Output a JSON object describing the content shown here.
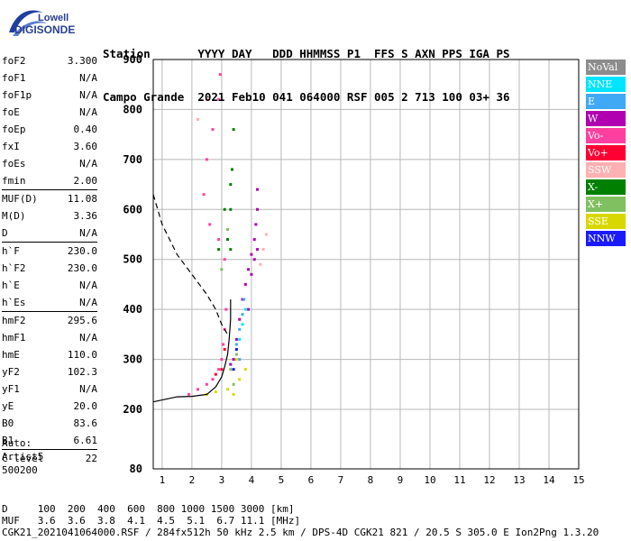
{
  "logo": {
    "line1": "Lowell",
    "line2": "DIGISONDE"
  },
  "header": {
    "row1": "Station       YYYY DAY   DDD HHMMSS P1  FFS S AXN PPS IGA PS",
    "row2": "Campo Grande  2021 Feb10 041 064000 RSF 005 2 713 100 03+ 36"
  },
  "params": [
    {
      "label": "foF2",
      "value": "3.300"
    },
    {
      "label": "foF1",
      "value": "N/A"
    },
    {
      "label": "foF1p",
      "value": "N/A"
    },
    {
      "label": "foE",
      "value": "N/A"
    },
    {
      "label": "foEp",
      "value": "0.40"
    },
    {
      "label": "fxI",
      "value": "3.60"
    },
    {
      "label": "foEs",
      "value": "N/A"
    },
    {
      "label": "fmin",
      "value": "2.00"
    },
    {
      "label": "MUF(D)",
      "value": "11.08"
    },
    {
      "label": "M(D)",
      "value": "3.36"
    },
    {
      "label": "D",
      "value": "N/A"
    },
    {
      "label": "h`F",
      "value": "230.0"
    },
    {
      "label": "h`F2",
      "value": "230.0"
    },
    {
      "label": "h`E",
      "value": "N/A"
    },
    {
      "label": "h`Es",
      "value": "N/A"
    },
    {
      "label": "hmF2",
      "value": "295.6"
    },
    {
      "label": "hmF1",
      "value": "N/A"
    },
    {
      "label": "hmE",
      "value": "110.0"
    },
    {
      "label": "yF2",
      "value": "102.3"
    },
    {
      "label": "yF1",
      "value": "N/A"
    },
    {
      "label": "yE",
      "value": "20.0"
    },
    {
      "label": "B0",
      "value": "83.6"
    },
    {
      "label": "B1",
      "value": "6.61"
    },
    {
      "label": "C-level",
      "value": "22"
    }
  ],
  "auto": {
    "line1": "Auto:",
    "line2": "Artist5",
    "line3": "500200"
  },
  "legend": [
    {
      "label": "NoVal",
      "color": "#8c8c8c"
    },
    {
      "label": "NNE",
      "color": "#00e5ff"
    },
    {
      "label": "E",
      "color": "#3fa9f5"
    },
    {
      "label": "W",
      "color": "#b000b0"
    },
    {
      "label": "Vo-",
      "color": "#ff3fa0"
    },
    {
      "label": "Vo+",
      "color": "#ff0033"
    },
    {
      "label": "SSW",
      "color": "#ffb0b0"
    },
    {
      "label": "X-",
      "color": "#008000"
    },
    {
      "label": "X+",
      "color": "#80c060"
    },
    {
      "label": "SSE",
      "color": "#d8d800"
    },
    {
      "label": "NNW",
      "color": "#1a1aff"
    }
  ],
  "footer": {
    "row_d": "D     100  200  400  600  800 1000 1500 3000 [km]",
    "row_muf": "MUF   3.6  3.6  3.8  4.1  4.5  5.1  6.7 11.1 [MHz]",
    "row_info": "CGK21_2021041064000.RSF / 284fx512h 50 kHz 2.5 km / DPS-4D CGK21 821 / 20.5 S 305.0 E Ion2Png 1.3.20"
  },
  "chart_data": {
    "type": "scatter",
    "xlim": [
      0.7,
      15
    ],
    "ylim": [
      80,
      900
    ],
    "x_ticks": [
      1,
      2,
      3,
      4,
      5,
      6,
      7,
      8,
      9,
      10,
      11,
      12,
      13,
      14,
      15
    ],
    "y_ticks": [
      80,
      200,
      300,
      400,
      500,
      600,
      700,
      800,
      900
    ],
    "grid": true,
    "series": [
      {
        "name": "W",
        "color": "#b000b0",
        "points": [
          [
            3.4,
            300
          ],
          [
            3.5,
            340
          ],
          [
            3.6,
            380
          ],
          [
            3.7,
            420
          ],
          [
            3.8,
            450
          ],
          [
            3.9,
            480
          ],
          [
            4.0,
            510
          ],
          [
            4.1,
            540
          ],
          [
            4.15,
            570
          ],
          [
            4.2,
            600
          ],
          [
            4.2,
            640
          ],
          [
            3.3,
            290
          ],
          [
            3.9,
            400
          ],
          [
            4.0,
            470
          ],
          [
            4.1,
            500
          ],
          [
            4.2,
            520
          ]
        ]
      },
      {
        "name": "Vo-",
        "color": "#ff3fa0",
        "points": [
          [
            1.9,
            230
          ],
          [
            2.2,
            240
          ],
          [
            2.5,
            250
          ],
          [
            2.7,
            260
          ],
          [
            2.9,
            280
          ],
          [
            3.0,
            300
          ],
          [
            3.05,
            330
          ],
          [
            3.1,
            360
          ],
          [
            3.15,
            400
          ],
          [
            3.1,
            500
          ],
          [
            2.9,
            540
          ],
          [
            2.6,
            570
          ],
          [
            2.4,
            630
          ],
          [
            2.5,
            700
          ],
          [
            2.7,
            760
          ],
          [
            2.9,
            820
          ],
          [
            2.95,
            870
          ]
        ]
      },
      {
        "name": "X-",
        "color": "#008000",
        "points": [
          [
            3.3,
            520
          ],
          [
            3.3,
            600
          ],
          [
            3.35,
            680
          ],
          [
            3.4,
            760
          ],
          [
            2.9,
            520
          ],
          [
            3.2,
            540
          ],
          [
            3.1,
            600
          ],
          [
            3.3,
            650
          ]
        ]
      },
      {
        "name": "SSE",
        "color": "#d8d800",
        "points": [
          [
            3.2,
            240
          ],
          [
            3.4,
            230
          ],
          [
            3.6,
            260
          ],
          [
            3.8,
            280
          ],
          [
            2.5,
            230
          ],
          [
            2.8,
            235
          ],
          [
            3.5,
            300
          ]
        ]
      },
      {
        "name": "E",
        "color": "#3fa9f5",
        "points": [
          [
            3.5,
            330
          ],
          [
            3.6,
            360
          ],
          [
            3.7,
            390
          ],
          [
            3.75,
            420
          ],
          [
            3.6,
            300
          ]
        ]
      },
      {
        "name": "X+",
        "color": "#80c060",
        "points": [
          [
            3.3,
            280
          ],
          [
            3.5,
            310
          ],
          [
            3.4,
            250
          ],
          [
            3.0,
            480
          ],
          [
            3.2,
            560
          ]
        ]
      },
      {
        "name": "SSW",
        "color": "#ffb0b0",
        "points": [
          [
            4.3,
            490
          ],
          [
            4.4,
            520
          ],
          [
            4.5,
            550
          ],
          [
            2.2,
            780
          ],
          [
            2.5,
            820
          ]
        ]
      },
      {
        "name": "NNE",
        "color": "#00e5ff",
        "points": [
          [
            3.6,
            340
          ],
          [
            3.7,
            370
          ],
          [
            3.8,
            400
          ]
        ]
      },
      {
        "name": "Vo+",
        "color": "#ff0033",
        "points": [
          [
            3.0,
            280
          ],
          [
            3.1,
            320
          ],
          [
            2.8,
            270
          ]
        ]
      },
      {
        "name": "NNW",
        "color": "#1a1aff",
        "points": [
          [
            3.4,
            280
          ],
          [
            3.5,
            320
          ]
        ]
      }
    ],
    "profile_solid": [
      [
        0.7,
        215
      ],
      [
        1.5,
        225
      ],
      [
        2.0,
        226
      ],
      [
        2.5,
        230
      ],
      [
        2.8,
        245
      ],
      [
        3.0,
        265
      ],
      [
        3.1,
        285
      ],
      [
        3.2,
        310
      ],
      [
        3.25,
        340
      ],
      [
        3.3,
        380
      ],
      [
        3.3,
        420
      ]
    ],
    "profile_dashed": [
      [
        0.7,
        630
      ],
      [
        1.0,
        570
      ],
      [
        1.5,
        510
      ],
      [
        2.0,
        470
      ],
      [
        2.5,
        430
      ],
      [
        2.8,
        400
      ],
      [
        3.0,
        370
      ],
      [
        3.2,
        350
      ]
    ]
  }
}
